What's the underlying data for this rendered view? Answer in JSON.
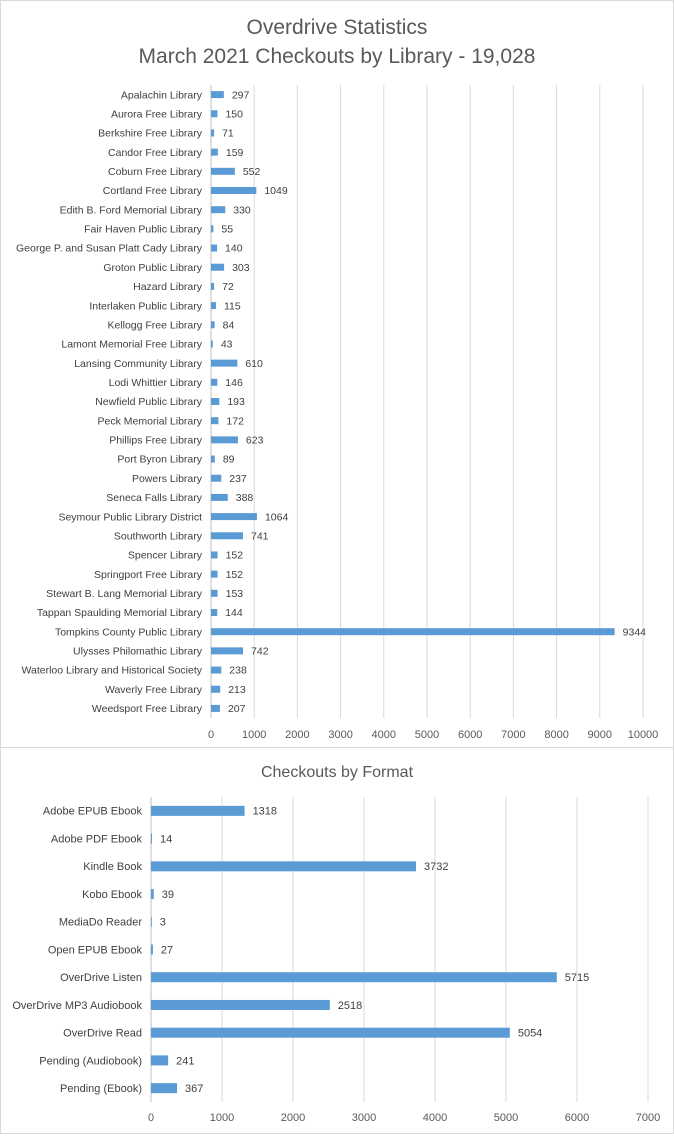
{
  "chart_data": [
    {
      "type": "bar",
      "orientation": "horizontal",
      "title": "Overdrive Statistics",
      "subtitle": "March 2021 Checkouts by Library - 19,028",
      "categories": [
        "Apalachin Library",
        "Aurora Free Library",
        "Berkshire Free Library",
        "Candor Free Library",
        "Coburn Free Library",
        "Cortland Free Library",
        "Edith B. Ford Memorial Library",
        "Fair Haven Public Library",
        "George P. and Susan Platt Cady Library",
        "Groton Public Library",
        "Hazard Library",
        "Interlaken Public Library",
        "Kellogg Free Library",
        "Lamont Memorial Free Library",
        "Lansing Community Library",
        "Lodi Whittier Library",
        "Newfield Public Library",
        "Peck Memorial Library",
        "Phillips Free Library",
        "Port Byron Library",
        "Powers Library",
        "Seneca Falls Library",
        "Seymour Public Library District",
        "Southworth Library",
        "Spencer Library",
        "Springport Free Library",
        "Stewart B. Lang Memorial Library",
        "Tappan Spaulding Memorial Library",
        "Tompkins County Public Library",
        "Ulysses Philomathic Library",
        "Waterloo Library and Historical Society",
        "Waverly Free Library",
        "Weedsport Free Library"
      ],
      "values": [
        297,
        150,
        71,
        159,
        552,
        1049,
        330,
        55,
        140,
        303,
        72,
        115,
        84,
        43,
        610,
        146,
        193,
        172,
        623,
        89,
        237,
        388,
        1064,
        741,
        152,
        152,
        153,
        144,
        9344,
        742,
        238,
        213,
        207
      ],
      "xlim": [
        0,
        10000
      ],
      "ticks": [
        "0",
        "1000",
        "2000",
        "3000",
        "4000",
        "5000",
        "6000",
        "7000",
        "8000",
        "9000",
        "10000"
      ],
      "grid": true,
      "color": "#5b9bd5"
    },
    {
      "type": "bar",
      "orientation": "horizontal",
      "title": "Checkouts by Format",
      "categories": [
        "Adobe EPUB Ebook",
        "Adobe PDF Ebook",
        "Kindle Book",
        "Kobo Ebook",
        "MediaDo Reader",
        "Open EPUB Ebook",
        "OverDrive Listen",
        "OverDrive MP3 Audiobook",
        "OverDrive Read",
        "Pending (Audiobook)",
        "Pending (Ebook)"
      ],
      "values": [
        1318,
        14,
        3732,
        39,
        3,
        27,
        5715,
        2518,
        5054,
        241,
        367
      ],
      "xlim": [
        0,
        7000
      ],
      "ticks": [
        "0",
        "1000",
        "2000",
        "3000",
        "4000",
        "5000",
        "6000",
        "7000"
      ],
      "grid": true,
      "color": "#5b9bd5"
    }
  ]
}
